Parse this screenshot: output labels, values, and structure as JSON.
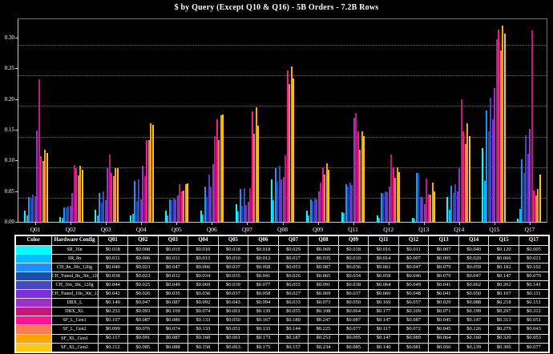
{
  "title": "$ by Query (Except Q10 & Q16) - 5B Orders - 7.2B Rows",
  "chart_data": {
    "type": "bar",
    "categories": [
      "Q01",
      "Q02",
      "Q03",
      "Q04",
      "Q05",
      "Q06",
      "Q07",
      "Q08",
      "Q09",
      "Q11",
      "Q12",
      "Q13",
      "Q14",
      "Q15",
      "Q17"
    ],
    "series": [
      {
        "name": "SR_16n",
        "color": "#00FFFF",
        "values": [
          0.018,
          0.008,
          0.019,
          0.01,
          0.018,
          0.018,
          0.029,
          0.069,
          0.018,
          0.016,
          0.011,
          0.007,
          0.04,
          0.12,
          0.005
        ]
      },
      {
        "name": "SR_8n",
        "color": "#00BFFF",
        "values": [
          0.011,
          0.006,
          0.011,
          0.013,
          0.01,
          0.012,
          0.017,
          0.035,
          0.01,
          0.014,
          0.007,
          0.005,
          0.02,
          0.066,
          0.021
        ]
      },
      {
        "name": "CH_8n_30c_120g",
        "color": "#1E90FF",
        "values": [
          0.04,
          0.023,
          0.047,
          0.066,
          0.037,
          0.058,
          0.053,
          0.087,
          0.036,
          0.061,
          0.047,
          0.079,
          0.059,
          0.182,
          0.102
        ]
      },
      {
        "name": "CH_Tuned_8n_30c_120g",
        "color": "#1A4FA8",
        "values": [
          0.038,
          0.023,
          0.032,
          0.034,
          0.035,
          0.041,
          0.026,
          0.065,
          0.034,
          0.058,
          0.046,
          0.079,
          0.047,
          0.147,
          0.079
        ]
      },
      {
        "name": "CH_16n_30c_120g",
        "color": "#4646BE",
        "values": [
          0.044,
          0.025,
          0.049,
          0.069,
          0.039,
          0.077,
          0.055,
          0.091,
          0.038,
          0.064,
          0.049,
          0.041,
          0.062,
          0.202,
          0.141
        ]
      },
      {
        "name": "CH_Tuned_16n_30c_120g",
        "color": "#7D30D8",
        "values": [
          0.042,
          0.026,
          0.035,
          0.036,
          0.037,
          0.058,
          0.027,
          0.069,
          0.037,
          0.06,
          0.048,
          0.041,
          0.05,
          0.167,
          0.111
        ]
      },
      {
        "name": "DBX_L",
        "color": "#9932CC",
        "values": [
          0.149,
          0.047,
          0.087,
          0.092,
          0.043,
          0.094,
          0.033,
          0.073,
          0.05,
          0.169,
          0.057,
          0.029,
          0.088,
          0.218,
          0.151
        ]
      },
      {
        "name": "DBX_XL",
        "color": "#C2187E",
        "values": [
          0.232,
          0.093,
          0.109,
          0.074,
          0.061,
          0.139,
          0.055,
          0.108,
          0.064,
          0.177,
          0.109,
          0.071,
          0.199,
          0.297,
          0.312
        ]
      },
      {
        "name": "SF_L_Gen1",
        "color": "#FF1493",
        "values": [
          0.107,
          0.087,
          0.08,
          0.133,
          0.05,
          0.167,
          0.18,
          0.247,
          0.087,
          0.147,
          0.087,
          0.045,
          0.147,
          0.313,
          0.051
        ]
      },
      {
        "name": "SF_L_Gen2",
        "color": "#FA7B55",
        "values": [
          0.099,
          0.076,
          0.074,
          0.133,
          0.051,
          0.133,
          0.144,
          0.225,
          0.077,
          0.117,
          0.072,
          0.045,
          0.126,
          0.279,
          0.043
        ]
      },
      {
        "name": "SF_XL_Gen1",
        "color": "#FFA500",
        "values": [
          0.117,
          0.091,
          0.087,
          0.16,
          0.061,
          0.173,
          0.187,
          0.253,
          0.095,
          0.147,
          0.089,
          0.064,
          0.16,
          0.32,
          0.053
        ]
      },
      {
        "name": "SF_XL_Gen2",
        "color": "#FFC812",
        "values": [
          0.112,
          0.085,
          0.088,
          0.158,
          0.063,
          0.175,
          0.157,
          0.234,
          0.085,
          0.14,
          0.081,
          0.05,
          0.139,
          0.306,
          0.077
        ]
      }
    ],
    "yticks": [
      "0.00",
      "0.05",
      "0.10",
      "0.15",
      "0.20",
      "0.25",
      "0.30"
    ],
    "ylim": [
      0,
      0.33
    ],
    "gridlines": [
      0.0375,
      0.0875,
      0.1375,
      0.1875,
      0.2375,
      0.2875
    ],
    "legend_position": "table-below",
    "background": "#000000",
    "text_color": "#FFFFFF"
  },
  "table": {
    "color_header": "Color",
    "config_header": "Hardware Config",
    "value_prefix": "$"
  }
}
